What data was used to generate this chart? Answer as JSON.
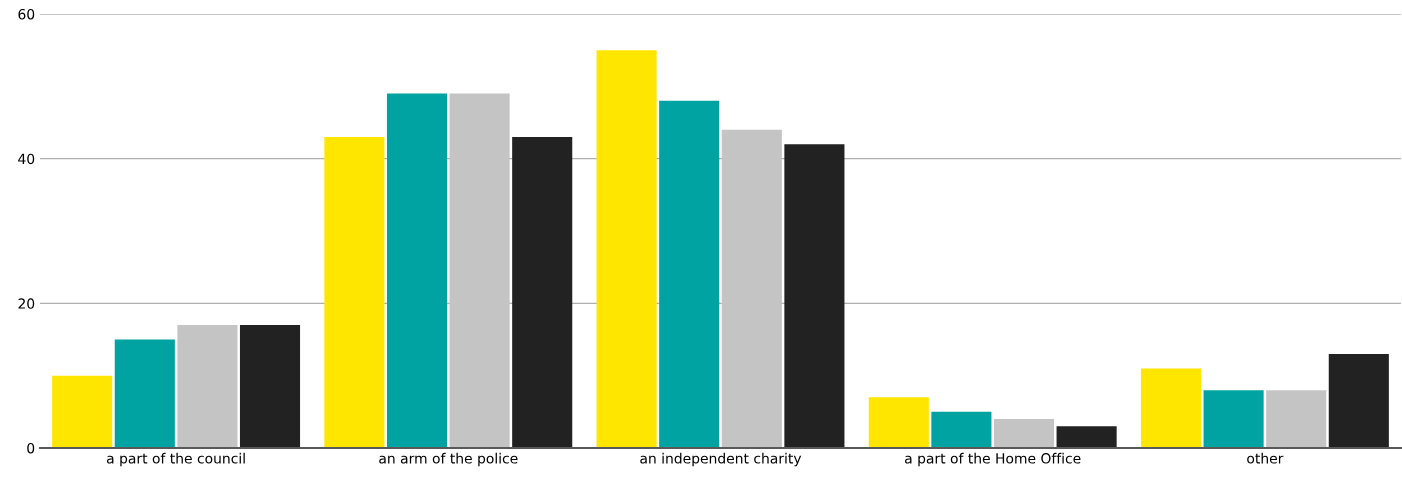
{
  "chart_data": {
    "type": "bar",
    "categories": [
      "a part of the council",
      "an arm of the police",
      "an independent charity",
      "a part of the Home Office",
      "other"
    ],
    "series": [
      {
        "color": "#ffe600",
        "values": [
          10,
          43,
          55,
          7,
          11
        ]
      },
      {
        "color": "#00a3a1",
        "values": [
          15,
          49,
          48,
          5,
          8
        ]
      },
      {
        "color": "#c4c4c4",
        "values": [
          17,
          49,
          44,
          4,
          8
        ]
      },
      {
        "color": "#222222",
        "values": [
          17,
          43,
          42,
          3,
          13
        ]
      }
    ],
    "ylim": [
      0,
      60
    ],
    "yticks": [
      0,
      20,
      40,
      60
    ],
    "grid": "y",
    "legend": false
  }
}
